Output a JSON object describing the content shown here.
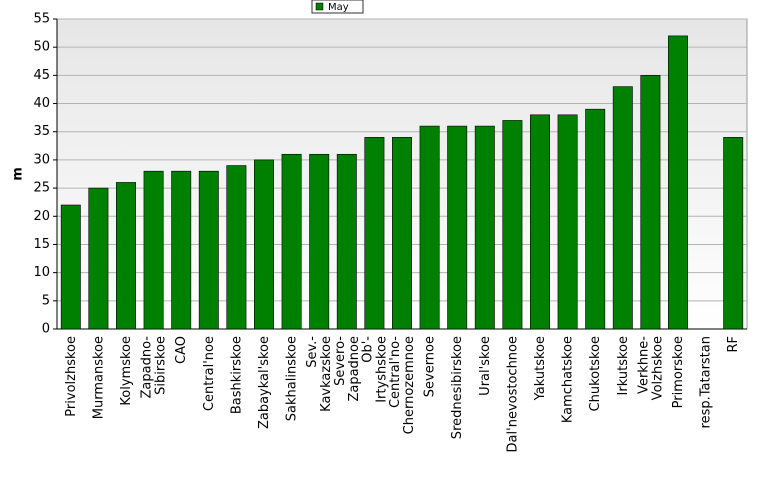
{
  "chart_data": {
    "type": "bar",
    "legend": "top",
    "y_label": "m",
    "categories": [
      "Privolzhskoe",
      "Murmanskoe",
      "Kolymskoe",
      "Zapadno-\nSibirskoe",
      "CAO",
      "Central'noe",
      "Bashkirskoe",
      "Zabaykal'skoe",
      "Sakhalinskoe",
      "Sev.-\nKavkazskoe",
      "Severo-\nZapadnoe",
      "Ob'-\nIrtyshskoe",
      "Central'no-\nChernozemnoe",
      "Severnoe",
      "Srednesibirskoe",
      "Ural'skoe",
      "Dal'nevostochnoe",
      "Yakutskoe",
      "Kamchatskoe",
      "Chukotskoe",
      "Irkutskoe",
      "Verkhne-\nVolzhskoe",
      "Primorskoe",
      "resp.Tatarstan",
      "RF"
    ],
    "series": [
      {
        "name": "May",
        "color": "#008000",
        "values": [
          22,
          25,
          26,
          28,
          28,
          28,
          29,
          30,
          31,
          31,
          31,
          34,
          34,
          36,
          36,
          36,
          37,
          38,
          38,
          39,
          43,
          45,
          52,
          null,
          34
        ]
      }
    ],
    "ylim": [
      0,
      55
    ],
    "yticks": [
      0,
      5,
      10,
      15,
      20,
      25,
      30,
      35,
      40,
      45,
      50,
      55
    ],
    "grid": true
  }
}
